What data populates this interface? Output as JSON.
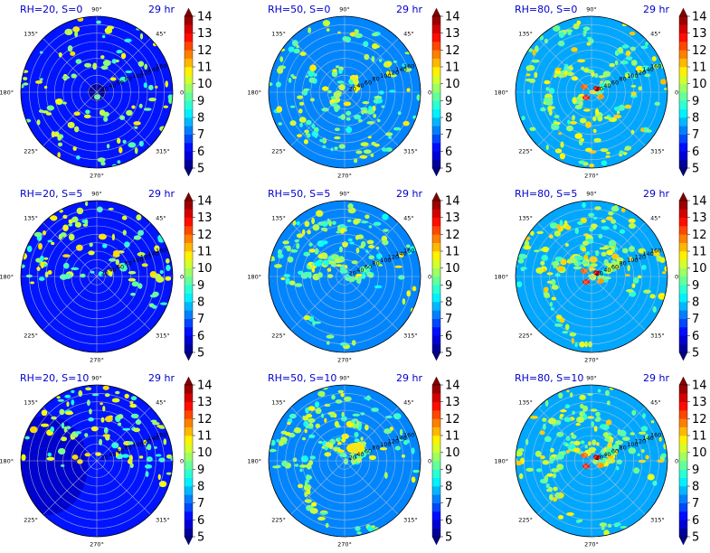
{
  "chart_data": [
    {
      "type": "polar-contour",
      "title_left": "RH=20, S=0",
      "title_right": "29 hr",
      "rh": 20,
      "s": 0
    },
    {
      "type": "polar-contour",
      "title_left": "RH=50, S=0",
      "title_right": "29 hr",
      "rh": 50,
      "s": 0
    },
    {
      "type": "polar-contour",
      "title_left": "RH=80, S=0",
      "title_right": "29 hr",
      "rh": 80,
      "s": 0
    },
    {
      "type": "polar-contour",
      "title_left": "RH=20, S=5",
      "title_right": "29 hr",
      "rh": 20,
      "s": 5
    },
    {
      "type": "polar-contour",
      "title_left": "RH=50, S=5",
      "title_right": "29 hr",
      "rh": 50,
      "s": 5
    },
    {
      "type": "polar-contour",
      "title_left": "RH=80, S=5",
      "title_right": "29 hr",
      "rh": 80,
      "s": 5
    },
    {
      "type": "polar-contour",
      "title_left": "RH=20, S=10",
      "title_right": "29 hr",
      "rh": 20,
      "s": 10
    },
    {
      "type": "polar-contour",
      "title_left": "RH=50, S=10",
      "title_right": "29 hr",
      "rh": 50,
      "s": 10
    },
    {
      "type": "polar-contour",
      "title_left": "RH=80, S=10",
      "title_right": "29 hr",
      "rh": 80,
      "s": 10
    }
  ],
  "angle_labels": [
    "0°",
    "45°",
    "90°",
    "135°",
    "180°",
    "225°",
    "270°",
    "315°"
  ],
  "radial_ticks": [
    20,
    40,
    60,
    80,
    100,
    120,
    140,
    160
  ],
  "radial_max": 180,
  "colorbar": {
    "min": 5,
    "max": 14,
    "ticks": [
      5,
      6,
      7,
      8,
      9,
      10,
      11,
      12,
      13,
      14
    ],
    "colormap": "jet",
    "extend": "both"
  },
  "colors": {
    "title": "#0000cc",
    "background_field": "#0a6cf0",
    "grid": "#c8c8c8"
  }
}
